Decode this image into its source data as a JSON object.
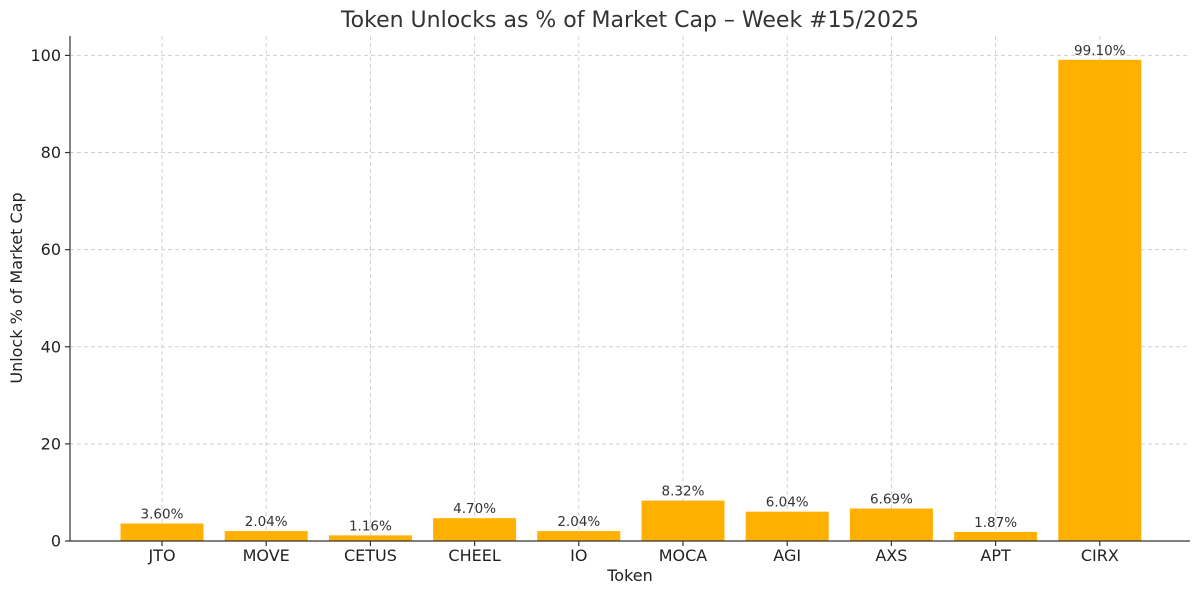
{
  "chart_data": {
    "type": "bar",
    "title": "Token Unlocks as % of Market Cap – Week #15/2025",
    "xlabel": "Token",
    "ylabel": "Unlock % of Market Cap",
    "categories": [
      "JTO",
      "MOVE",
      "CETUS",
      "CHEEL",
      "IO",
      "MOCA",
      "AGI",
      "AXS",
      "APT",
      "CIRX"
    ],
    "values": [
      3.6,
      2.04,
      1.16,
      4.7,
      2.04,
      8.32,
      6.04,
      6.69,
      1.87,
      99.1
    ],
    "data_labels": [
      "3.60%",
      "2.04%",
      "1.16%",
      "4.70%",
      "2.04%",
      "8.32%",
      "6.04%",
      "6.69%",
      "1.87%",
      "99.10%"
    ],
    "ylim": [
      0,
      104
    ],
    "yticks": [
      0,
      20,
      40,
      60,
      80,
      100
    ],
    "grid": true,
    "bar_color": "#FFB000"
  }
}
